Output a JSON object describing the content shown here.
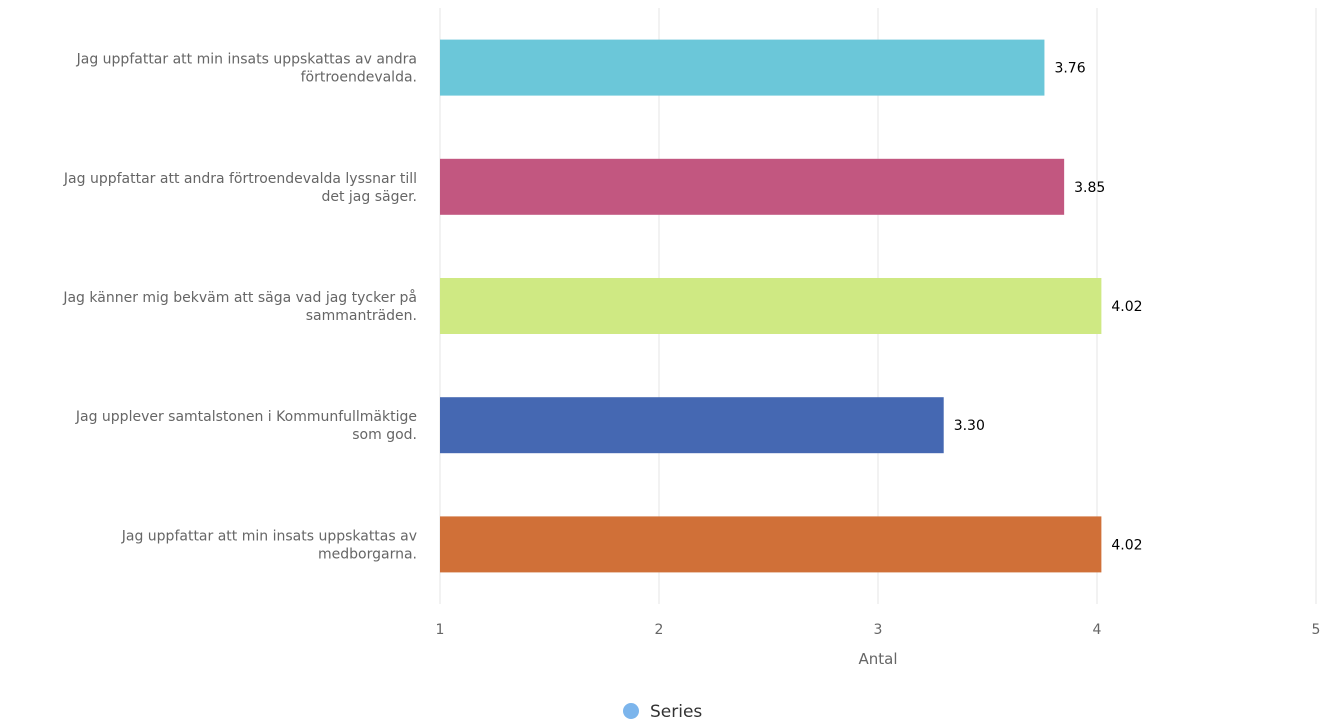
{
  "chart_data": {
    "type": "bar",
    "orientation": "horizontal",
    "categories": [
      [
        "Jag uppfattar att min insats uppskattas av andra",
        "förtroendevalda."
      ],
      [
        "Jag uppfattar att andra förtroendevalda lyssnar till",
        "det jag säger."
      ],
      [
        "Jag känner mig bekväm att säga vad jag tycker på",
        "sammanträden."
      ],
      [
        "Jag upplever samtalstonen i Kommunfullmäktige",
        "som god."
      ],
      [
        "Jag uppfattar att min insats uppskattas av",
        "medborgarna."
      ]
    ],
    "series": [
      {
        "name": "Series",
        "values": [
          3.76,
          3.85,
          4.02,
          3.3,
          4.02
        ],
        "value_labels": [
          "3.76",
          "3.85",
          "4.02",
          "3.30",
          "4.02"
        ],
        "colors": [
          "#6bc7d9",
          "#c25780",
          "#cfe983",
          "#4568b2",
          "#d07038"
        ]
      }
    ],
    "xlabel": "Antal",
    "xlim": [
      1,
      5
    ],
    "xticks": [
      1,
      2,
      3,
      4,
      5
    ],
    "grid": true,
    "legend": {
      "position": "bottom-center",
      "marker_color": "#7cb5ec"
    }
  }
}
